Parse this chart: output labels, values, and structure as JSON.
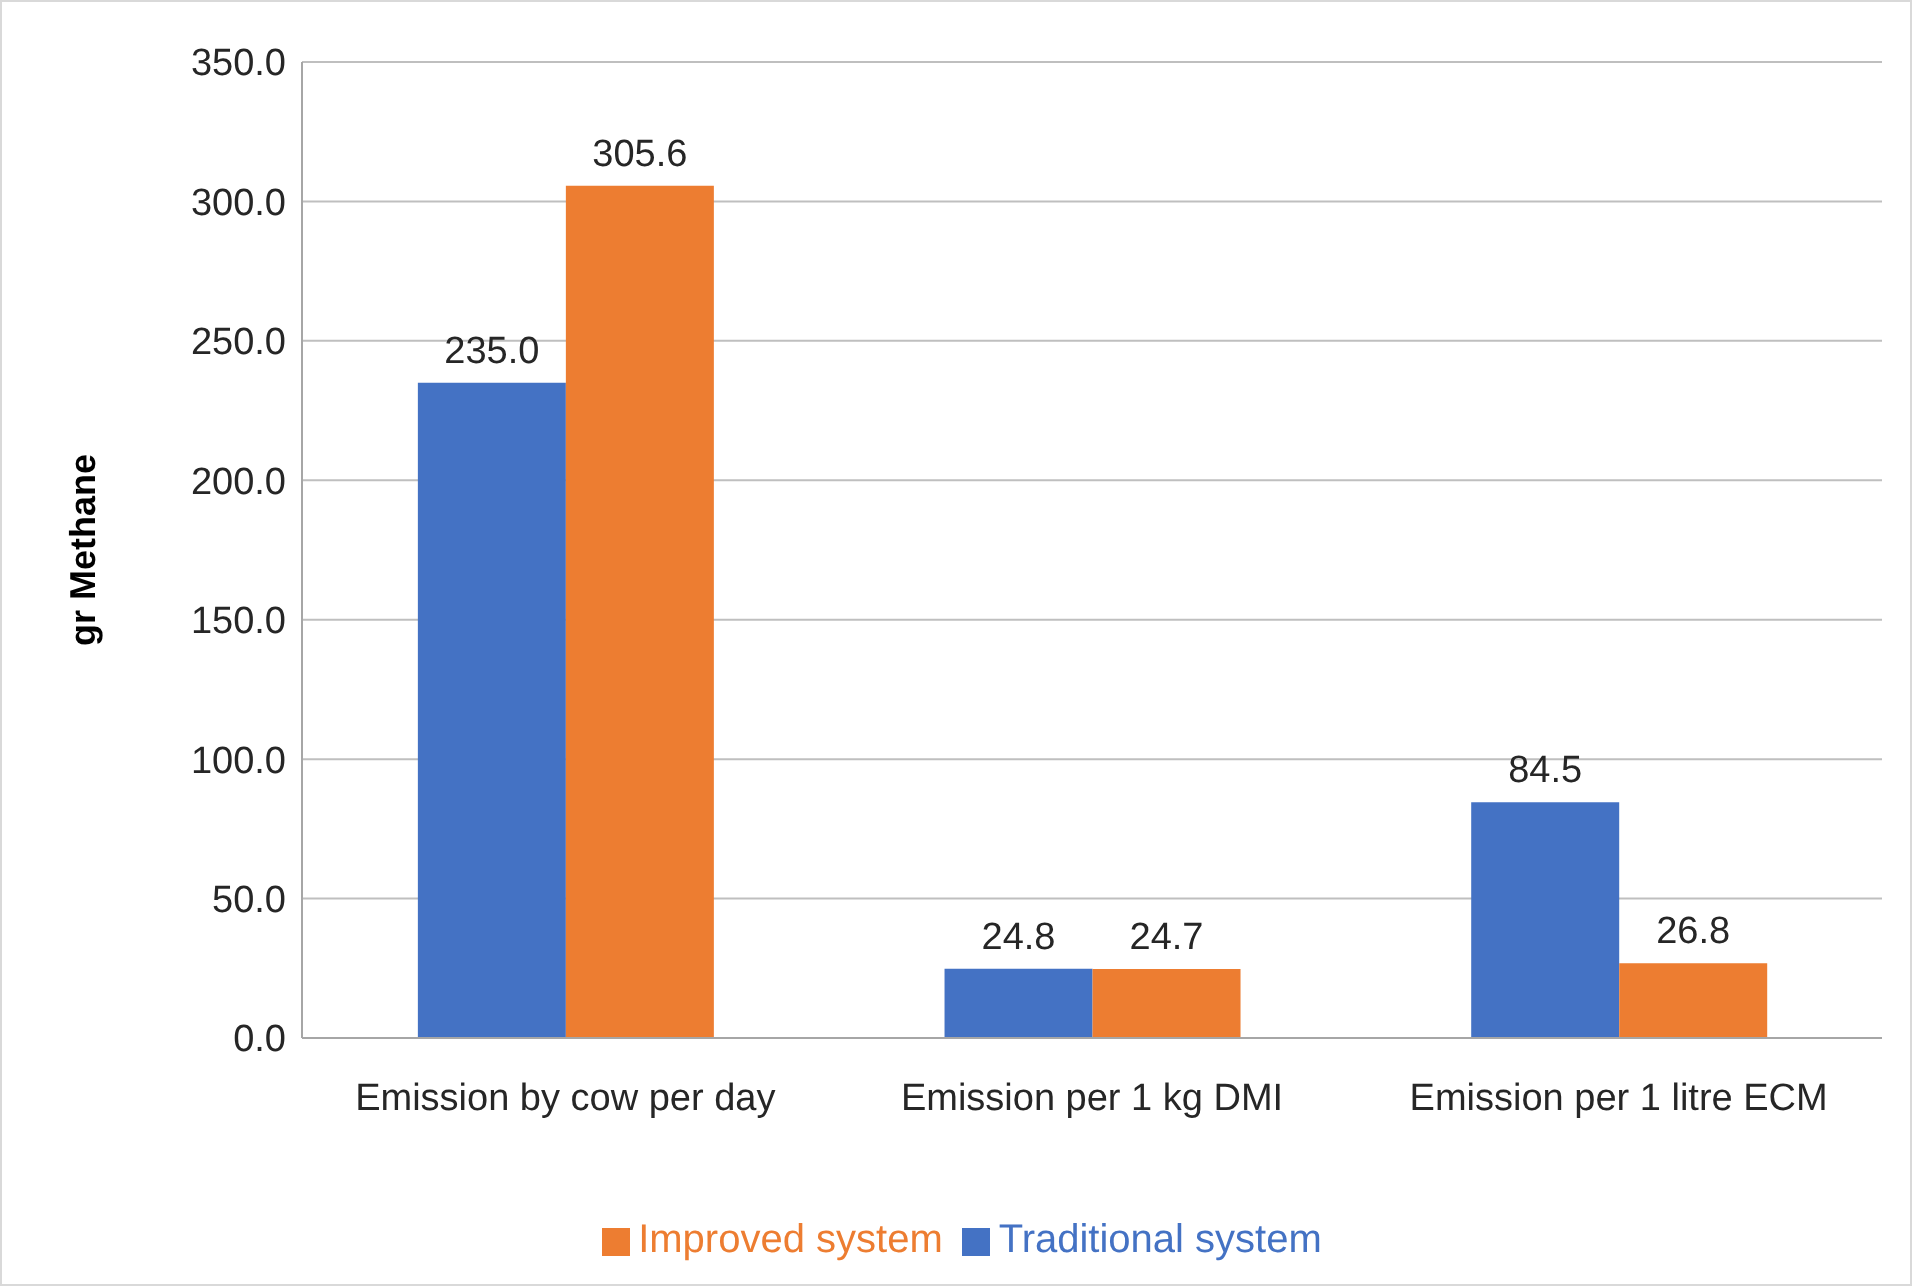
{
  "chart_data": {
    "type": "bar",
    "ylabel": "gr Methane",
    "categories": [
      "Emission by cow per day",
      "Emission per 1 kg DMI",
      "Emission per 1 litre ECM"
    ],
    "series": [
      {
        "name": "Traditional system",
        "color": "#4472c4",
        "values": [
          235.0,
          24.8,
          84.5
        ],
        "value_labels": [
          "235.0",
          "24.8",
          "84.5"
        ]
      },
      {
        "name": "Improved system",
        "color": "#ed7d31",
        "values": [
          305.6,
          24.7,
          26.8
        ],
        "value_labels": [
          "305.6",
          "24.7",
          "26.8"
        ]
      }
    ],
    "ylim": [
      0,
      350
    ],
    "yticks": [
      {
        "value": 0,
        "label": "0.0"
      },
      {
        "value": 50,
        "label": "50.0"
      },
      {
        "value": 100,
        "label": "100.0"
      },
      {
        "value": 150,
        "label": "150.0"
      },
      {
        "value": 200,
        "label": "200.0"
      },
      {
        "value": 250,
        "label": "250.0"
      },
      {
        "value": 300,
        "label": "300.0"
      },
      {
        "value": 350,
        "label": "350.0"
      }
    ],
    "grid": "y",
    "legend": "bottom"
  }
}
